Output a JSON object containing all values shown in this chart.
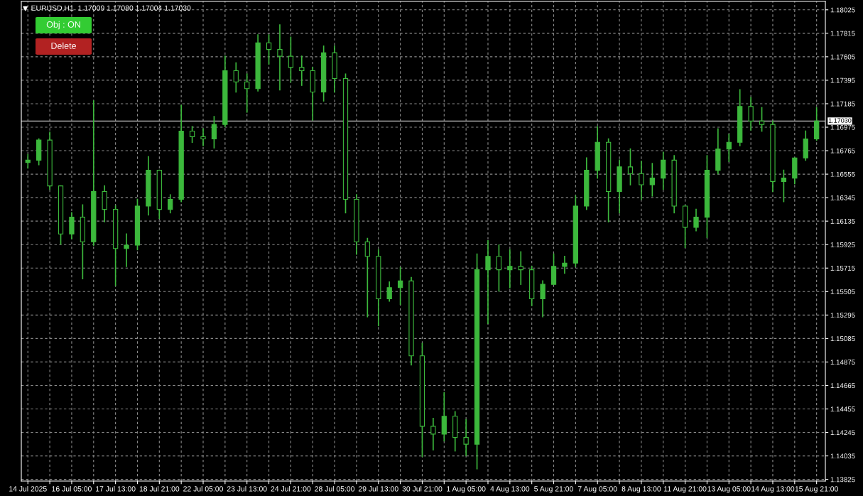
{
  "chart_data": {
    "type": "candlestick",
    "title": "EURUSD,H1  1.17009 1.17080 1.17004 1.17030",
    "annotations": [
      "Obj : ON",
      "Delete"
    ],
    "categories": [
      "14 Jul 2025",
      null,
      null,
      null,
      "16 Jul 05:00",
      null,
      null,
      null,
      "17 Jul 13:00",
      null,
      null,
      null,
      "18 Jul 21:00",
      null,
      null,
      null,
      "22 Jul 05:00",
      null,
      null,
      null,
      "23 Jul 13:00",
      null,
      null,
      null,
      "24 Jul 21:00",
      null,
      null,
      null,
      "28 Jul 05:00",
      null,
      null,
      null,
      "29 Jul 13:00",
      null,
      null,
      null,
      "30 Jul 21:00",
      null,
      null,
      null,
      "1 Aug 05:00",
      null,
      null,
      null,
      "4 Aug 13:00",
      null,
      null,
      null,
      "5 Aug 21:00",
      null,
      null,
      null,
      "7 Aug 05:00",
      null,
      null,
      null,
      "8 Aug 13:00",
      null,
      null,
      null,
      "11 Aug 21:00",
      null,
      null,
      null,
      "13 Aug 05:00",
      null,
      null,
      null,
      "14 Aug 13:00",
      null,
      null,
      null,
      "15 Aug 21:00"
    ],
    "ohlc": [
      [
        1.1666,
        1.1673,
        1.1661,
        1.1668
      ],
      [
        1.1668,
        1.1687,
        1.1664,
        1.1686
      ],
      [
        1.1686,
        1.1693,
        1.1642,
        1.1645
      ],
      [
        1.1645,
        1.1645,
        1.1593,
        1.1602
      ],
      [
        1.1602,
        1.1621,
        1.1598,
        1.1617
      ],
      [
        1.1617,
        1.1628,
        1.1562,
        1.1595
      ],
      [
        1.1595,
        1.1721,
        1.1592,
        1.164
      ],
      [
        1.164,
        1.1645,
        1.1613,
        1.1624
      ],
      [
        1.1624,
        1.1627,
        1.1556,
        1.1589
      ],
      [
        1.1589,
        1.1602,
        1.1573,
        1.1592
      ],
      [
        1.1592,
        1.1633,
        1.1588,
        1.1627
      ],
      [
        1.1627,
        1.1671,
        1.1619,
        1.1659
      ],
      [
        1.1659,
        1.1659,
        1.1616,
        1.1624
      ],
      [
        1.1624,
        1.1637,
        1.1621,
        1.1633
      ],
      [
        1.1633,
        1.1717,
        1.1631,
        1.1694
      ],
      [
        1.1694,
        1.1698,
        1.1684,
        1.1689
      ],
      [
        1.1689,
        1.1696,
        1.1681,
        1.1687
      ],
      [
        1.1687,
        1.1707,
        1.1679,
        1.17
      ],
      [
        1.17,
        1.1761,
        1.1698,
        1.1748
      ],
      [
        1.1748,
        1.1755,
        1.1729,
        1.1738
      ],
      [
        1.1738,
        1.1745,
        1.1711,
        1.1732
      ],
      [
        1.1732,
        1.178,
        1.173,
        1.1773
      ],
      [
        1.1773,
        1.178,
        1.1754,
        1.1767
      ],
      [
        1.1767,
        1.1789,
        1.1731,
        1.1761
      ],
      [
        1.1761,
        1.1778,
        1.1738,
        1.1751
      ],
      [
        1.1751,
        1.1761,
        1.1735,
        1.1748
      ],
      [
        1.1748,
        1.1751,
        1.1704,
        1.1729
      ],
      [
        1.1729,
        1.177,
        1.1721,
        1.1764
      ],
      [
        1.1764,
        1.177,
        1.1729,
        1.1741
      ],
      [
        1.1741,
        1.1745,
        1.1621,
        1.1633
      ],
      [
        1.1633,
        1.1637,
        1.1584,
        1.1595
      ],
      [
        1.1595,
        1.1598,
        1.1528,
        1.1582
      ],
      [
        1.1582,
        1.1588,
        1.152,
        1.1544
      ],
      [
        1.1544,
        1.1559,
        1.1542,
        1.1554
      ],
      [
        1.1554,
        1.1572,
        1.1539,
        1.156
      ],
      [
        1.156,
        1.1563,
        1.1485,
        1.1493
      ],
      [
        1.1493,
        1.1504,
        1.1403,
        1.143
      ],
      [
        1.143,
        1.1437,
        1.1409,
        1.1423
      ],
      [
        1.1423,
        1.146,
        1.1417,
        1.1439
      ],
      [
        1.1439,
        1.1443,
        1.1408,
        1.142
      ],
      [
        1.142,
        1.1436,
        1.1404,
        1.1414
      ],
      [
        1.1414,
        1.1584,
        1.1392,
        1.157
      ],
      [
        1.157,
        1.1596,
        1.1522,
        1.1582
      ],
      [
        1.1582,
        1.1592,
        1.1551,
        1.157
      ],
      [
        1.157,
        1.1588,
        1.1554,
        1.1573
      ],
      [
        1.1573,
        1.1586,
        1.1557,
        1.157
      ],
      [
        1.157,
        1.1573,
        1.1538,
        1.1544
      ],
      [
        1.1544,
        1.156,
        1.1528,
        1.1557
      ],
      [
        1.1557,
        1.1584,
        1.1557,
        1.1573
      ],
      [
        1.1573,
        1.1582,
        1.1567,
        1.1576
      ],
      [
        1.1576,
        1.1636,
        1.1573,
        1.1627
      ],
      [
        1.1627,
        1.167,
        1.1624,
        1.1659
      ],
      [
        1.1659,
        1.1698,
        1.1652,
        1.1684
      ],
      [
        1.1684,
        1.1687,
        1.1613,
        1.164
      ],
      [
        1.164,
        1.1668,
        1.1621,
        1.1662
      ],
      [
        1.1662,
        1.1678,
        1.1646,
        1.1656
      ],
      [
        1.1656,
        1.1667,
        1.1633,
        1.1646
      ],
      [
        1.1646,
        1.1665,
        1.1636,
        1.1652
      ],
      [
        1.1652,
        1.1675,
        1.1642,
        1.1668
      ],
      [
        1.1668,
        1.1672,
        1.1621,
        1.1627
      ],
      [
        1.1627,
        1.1627,
        1.159,
        1.1608
      ],
      [
        1.1608,
        1.1624,
        1.1605,
        1.1617
      ],
      [
        1.1617,
        1.1672,
        1.1599,
        1.1659
      ],
      [
        1.1659,
        1.1696,
        1.1656,
        1.1678
      ],
      [
        1.1678,
        1.1691,
        1.1667,
        1.1684
      ],
      [
        1.1684,
        1.1731,
        1.1681,
        1.1716
      ],
      [
        1.1716,
        1.1724,
        1.1695,
        1.1703
      ],
      [
        1.1703,
        1.1715,
        1.1694,
        1.17
      ],
      [
        1.17,
        1.1703,
        1.164,
        1.1649
      ],
      [
        1.1649,
        1.1659,
        1.1631,
        1.1652
      ],
      [
        1.1652,
        1.167,
        1.1647,
        1.167
      ],
      [
        1.167,
        1.1694,
        1.1668,
        1.1687
      ],
      [
        1.1687,
        1.1715,
        1.1686,
        1.1703
      ]
    ],
    "color": "#3cb83c",
    "ylim": [
      1.1381,
      1.181
    ],
    "yticks": [
      1.13825,
      1.14035,
      1.14245,
      1.14455,
      1.14665,
      1.14875,
      1.15085,
      1.15295,
      1.15505,
      1.15715,
      1.15925,
      1.16135,
      1.16345,
      1.16555,
      1.16765,
      1.16975,
      1.17185,
      1.17395,
      1.17605,
      1.17815,
      1.18025
    ],
    "ref_lines": [
      {
        "axis": "y",
        "value": 1.1703,
        "label": "1.17030",
        "color": "#c0c0c0"
      }
    ],
    "grid": true
  }
}
